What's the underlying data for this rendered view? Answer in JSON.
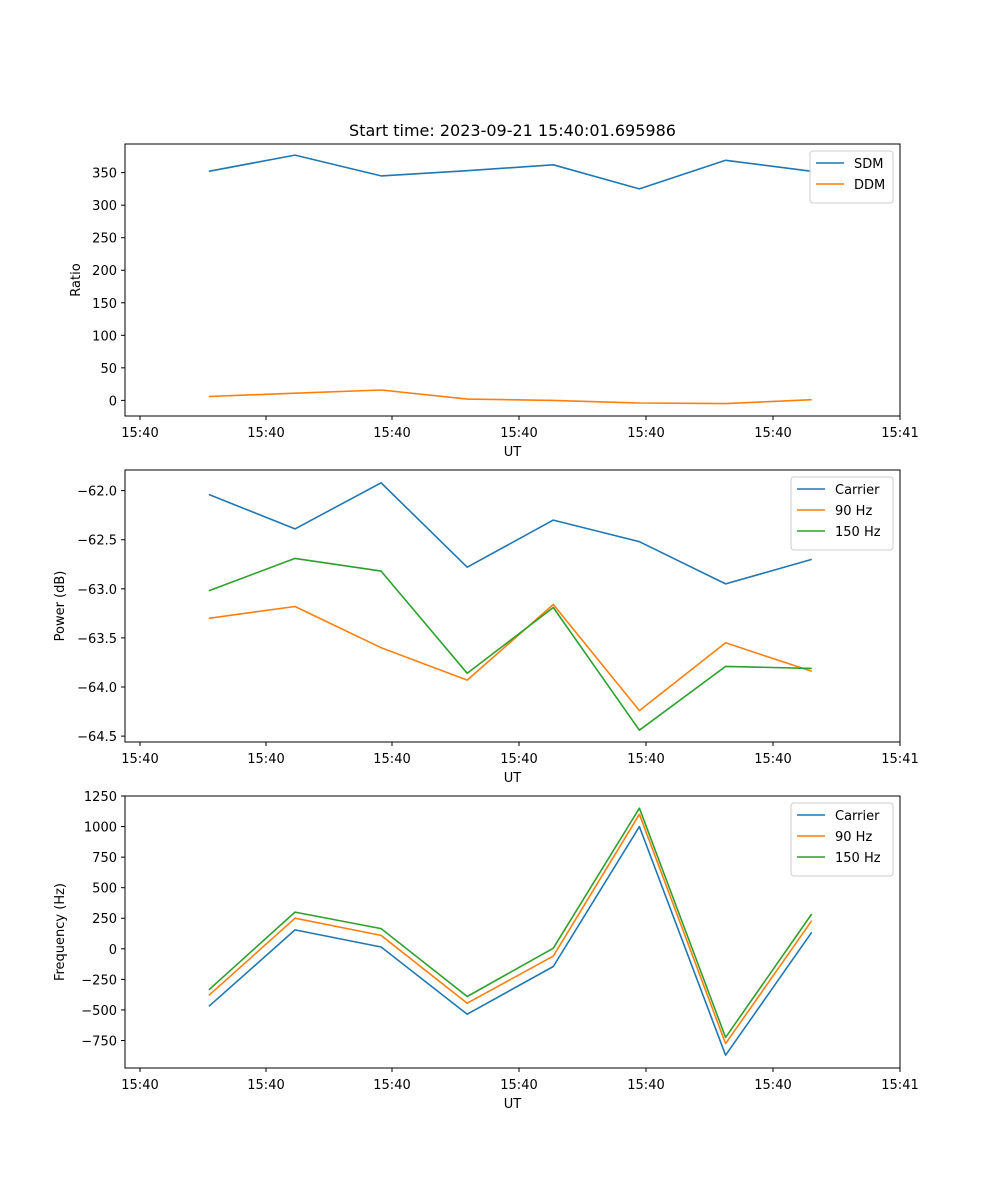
{
  "chart_data": [
    {
      "type": "line",
      "title": "Start time: 2023-09-21 15:40:01.695986",
      "xlabel": "UT",
      "ylabel": "Ratio",
      "x": [
        1,
        2,
        3,
        4,
        5,
        6,
        7,
        8
      ],
      "xlim": [
        0.2,
        9.2
      ],
      "x_ticks": [
        0.2,
        1.7333,
        3.2667,
        4.8,
        6.3333,
        7.8667,
        9.4
      ],
      "x_tick_labels": [
        "15:40",
        "15:40",
        "15:40",
        "15:40",
        "15:40",
        "15:40",
        "15:41"
      ],
      "ylim": [
        -24,
        394
      ],
      "y_ticks": [
        0,
        50,
        100,
        150,
        200,
        250,
        300,
        350
      ],
      "y_tick_labels": [
        "0",
        "50",
        "100",
        "150",
        "200",
        "250",
        "300",
        "350"
      ],
      "legend": "top-right",
      "series": [
        {
          "name": "SDM",
          "color": "#1f77b4",
          "values": [
            352,
            377,
            345,
            353,
            362,
            325,
            369,
            352
          ]
        },
        {
          "name": "DDM",
          "color": "#ff7f0e",
          "values": [
            6,
            11,
            16,
            2,
            0,
            -4,
            -5,
            1
          ]
        }
      ]
    },
    {
      "type": "line",
      "xlabel": "UT",
      "ylabel": "Power (dB)",
      "x": [
        1,
        2,
        3,
        4,
        5,
        6,
        7,
        8
      ],
      "xlim": [
        0.2,
        9.2
      ],
      "x_ticks": [
        0.2,
        1.7333,
        3.2667,
        4.8,
        6.3333,
        7.8667,
        9.4
      ],
      "x_tick_labels": [
        "15:40",
        "15:40",
        "15:40",
        "15:40",
        "15:40",
        "15:40",
        "15:41"
      ],
      "ylim": [
        -64.56,
        -61.79
      ],
      "y_ticks": [
        -64.5,
        -64.0,
        -63.5,
        -63.0,
        -62.5,
        -62.0
      ],
      "y_tick_labels": [
        "−64.5",
        "−64.0",
        "−63.5",
        "−63.0",
        "−62.5",
        "−62.0"
      ],
      "legend": "top-right",
      "series": [
        {
          "name": "Carrier",
          "color": "#1f77b4",
          "values": [
            -62.04,
            -62.39,
            -61.92,
            -62.78,
            -62.3,
            -62.52,
            -62.95,
            -62.7
          ]
        },
        {
          "name": "90 Hz",
          "color": "#ff7f0e",
          "values": [
            -63.3,
            -63.18,
            -63.6,
            -63.93,
            -63.16,
            -64.24,
            -63.55,
            -63.84
          ]
        },
        {
          "name": "150 Hz",
          "color": "#2ca02c",
          "values": [
            -63.02,
            -62.69,
            -62.82,
            -63.86,
            -63.19,
            -64.44,
            -63.79,
            -63.81
          ]
        }
      ]
    },
    {
      "type": "line",
      "xlabel": "UT",
      "ylabel": "Frequency (Hz)",
      "x": [
        1,
        2,
        3,
        4,
        5,
        6,
        7,
        8
      ],
      "xlim": [
        0.2,
        9.2
      ],
      "x_ticks": [
        0.2,
        1.7333,
        3.2667,
        4.8,
        6.3333,
        7.8667,
        9.4
      ],
      "x_tick_labels": [
        "15:40",
        "15:40",
        "15:40",
        "15:40",
        "15:40",
        "15:40",
        "15:41"
      ],
      "ylim": [
        -975,
        1250
      ],
      "y_ticks": [
        -750,
        -500,
        -250,
        0,
        250,
        500,
        750,
        1000,
        1250
      ],
      "y_tick_labels": [
        "−750",
        "−500",
        "−250",
        "0",
        "250",
        "500",
        "750",
        "1000",
        "1250"
      ],
      "legend": "top-right",
      "series": [
        {
          "name": "Carrier",
          "color": "#1f77b4",
          "values": [
            -470,
            155,
            15,
            -535,
            -145,
            1000,
            -870,
            135
          ]
        },
        {
          "name": "90 Hz",
          "color": "#ff7f0e",
          "values": [
            -380,
            250,
            110,
            -445,
            -60,
            1100,
            -775,
            230
          ]
        },
        {
          "name": "150 Hz",
          "color": "#2ca02c",
          "values": [
            -335,
            300,
            165,
            -390,
            5,
            1150,
            -725,
            285
          ]
        }
      ]
    }
  ]
}
